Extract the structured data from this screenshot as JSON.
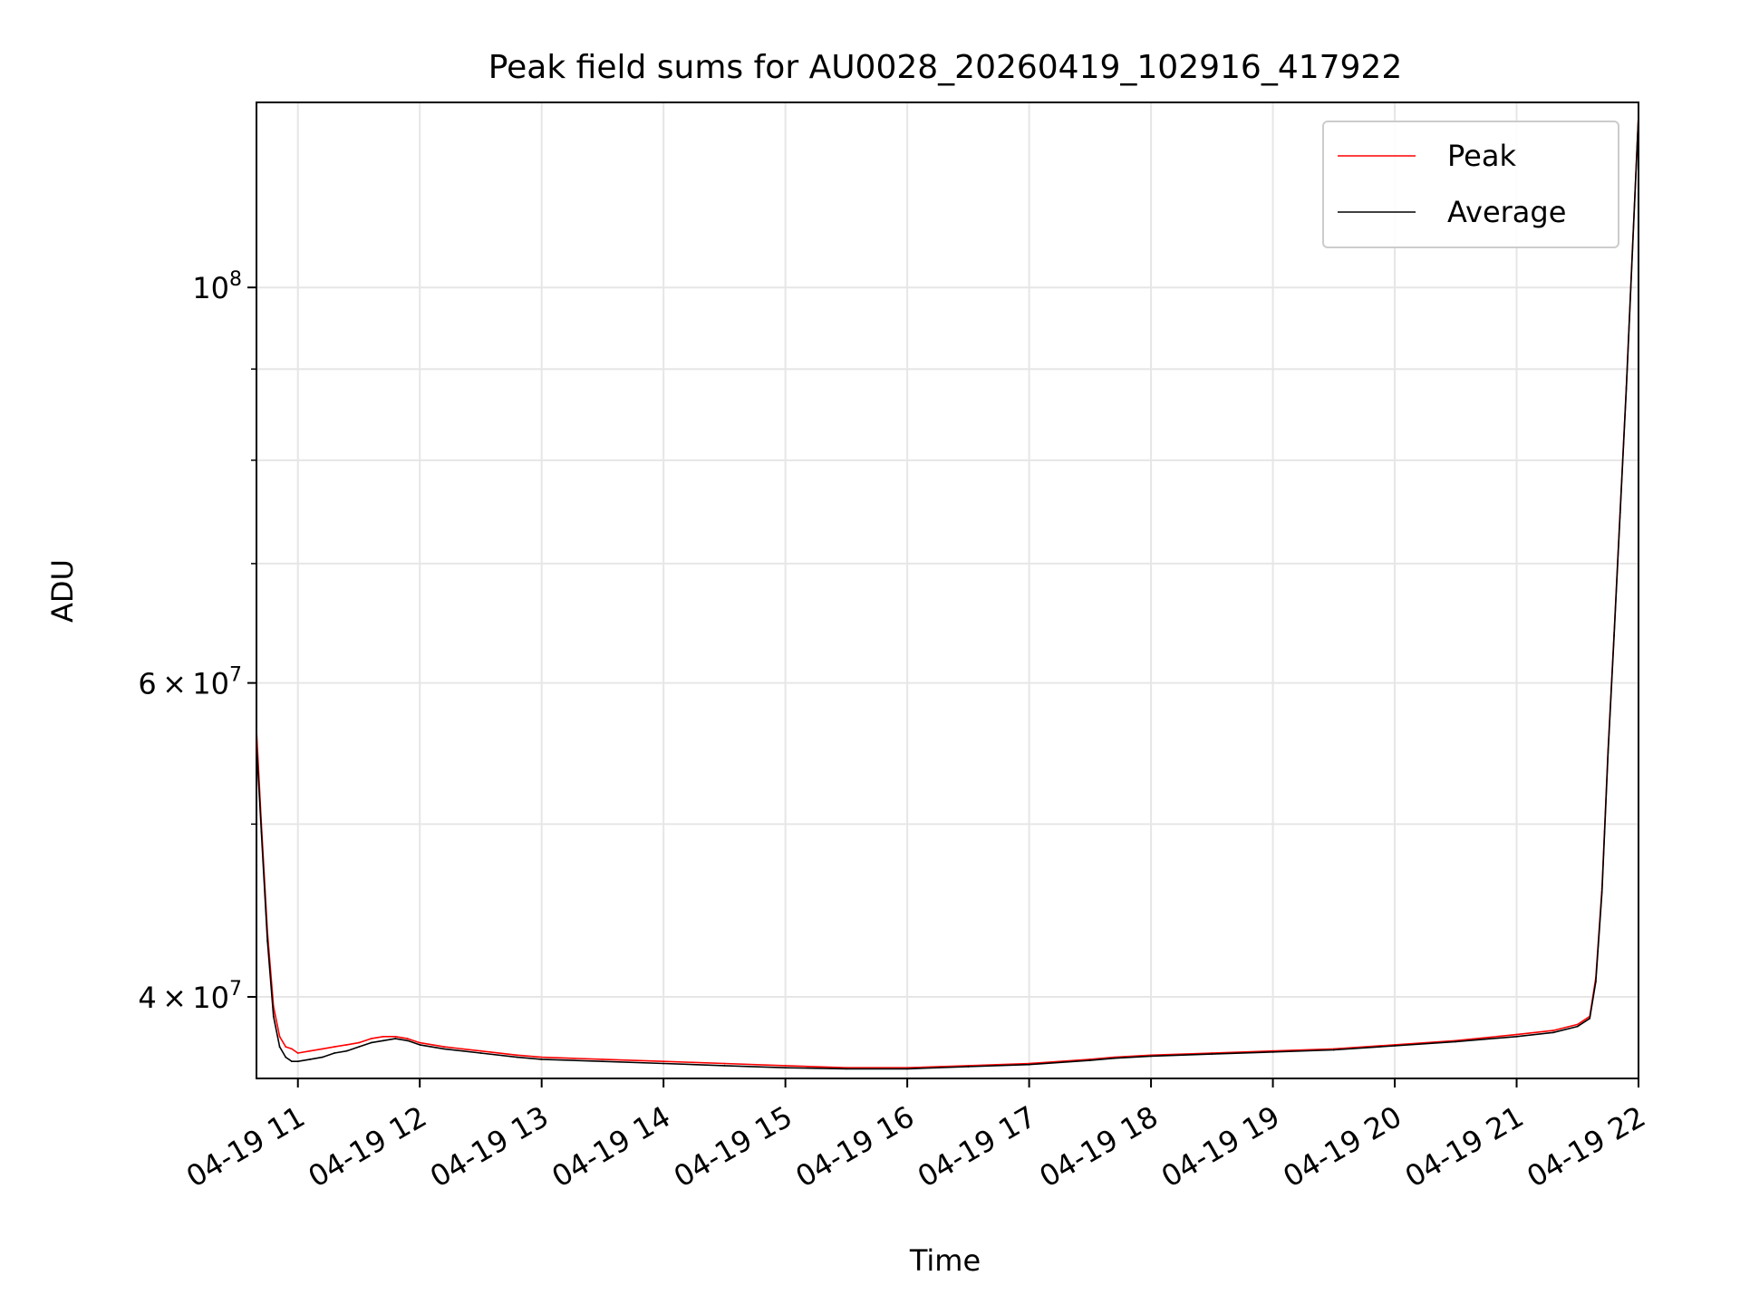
{
  "chart_data": {
    "type": "line",
    "title": "Peak field sums for AU0028_20260419_102916_417922",
    "xlabel": "Time",
    "ylabel": "ADU",
    "yscale": "log",
    "grid": true,
    "legend_position": "top-right",
    "xlim": [
      10.66,
      22.0
    ],
    "ylim": [
      36000000,
      127000000
    ],
    "x_ticks": [
      {
        "value": 11,
        "label": "04-19 11"
      },
      {
        "value": 12,
        "label": "04-19 12"
      },
      {
        "value": 13,
        "label": "04-19 13"
      },
      {
        "value": 14,
        "label": "04-19 14"
      },
      {
        "value": 15,
        "label": "04-19 15"
      },
      {
        "value": 16,
        "label": "04-19 16"
      },
      {
        "value": 17,
        "label": "04-19 17"
      },
      {
        "value": 18,
        "label": "04-19 18"
      },
      {
        "value": 19,
        "label": "04-19 19"
      },
      {
        "value": 20,
        "label": "04-19 20"
      },
      {
        "value": 21,
        "label": "04-19 21"
      },
      {
        "value": 22,
        "label": "04-19 22"
      }
    ],
    "y_major_ticks": [
      {
        "value": 40000000,
        "mantissa": "4",
        "exponent": "7"
      },
      {
        "value": 60000000,
        "mantissa": "6",
        "exponent": "7"
      },
      {
        "value": 100000000,
        "mantissa": "",
        "exponent": "8"
      }
    ],
    "y_minor_ticks": [
      50000000,
      70000000,
      80000000,
      90000000
    ],
    "series": [
      {
        "name": "Peak",
        "color": "#ff0000",
        "x": [
          10.66,
          10.7,
          10.75,
          10.8,
          10.85,
          10.9,
          10.95,
          11.0,
          11.1,
          11.2,
          11.3,
          11.4,
          11.5,
          11.6,
          11.7,
          11.8,
          11.9,
          12.0,
          12.2,
          12.5,
          12.8,
          13.0,
          13.5,
          14.0,
          14.5,
          15.0,
          15.5,
          16.0,
          16.5,
          17.0,
          17.5,
          17.7,
          18.0,
          18.5,
          19.0,
          19.5,
          20.0,
          20.5,
          21.0,
          21.3,
          21.5,
          21.6,
          21.65,
          21.7,
          21.75,
          21.8,
          21.85,
          21.9,
          21.95,
          22.0
        ],
        "values": [
          56500000,
          50000000,
          43500000,
          39500000,
          38000000,
          37500000,
          37400000,
          37200000,
          37300000,
          37400000,
          37500000,
          37600000,
          37700000,
          37900000,
          38000000,
          38000000,
          37900000,
          37700000,
          37500000,
          37300000,
          37100000,
          37000000,
          36900000,
          36800000,
          36700000,
          36600000,
          36500000,
          36500000,
          36600000,
          36700000,
          36900000,
          37000000,
          37100000,
          37200000,
          37300000,
          37400000,
          37600000,
          37800000,
          38100000,
          38300000,
          38600000,
          39000000,
          41000000,
          46000000,
          55000000,
          64000000,
          75000000,
          88000000,
          105000000,
          125000000
        ]
      },
      {
        "name": "Average",
        "color": "#000000",
        "x": [
          10.66,
          10.7,
          10.75,
          10.8,
          10.85,
          10.9,
          10.95,
          11.0,
          11.1,
          11.2,
          11.3,
          11.4,
          11.5,
          11.6,
          11.7,
          11.8,
          11.9,
          12.0,
          12.2,
          12.5,
          12.8,
          13.0,
          13.5,
          14.0,
          14.5,
          15.0,
          15.5,
          16.0,
          16.5,
          17.0,
          17.5,
          17.7,
          18.0,
          18.5,
          19.0,
          19.5,
          20.0,
          20.5,
          21.0,
          21.3,
          21.5,
          21.6,
          21.65,
          21.7,
          21.75,
          21.8,
          21.85,
          21.9,
          21.95,
          22.0
        ],
        "values": [
          55500000,
          49500000,
          43000000,
          39000000,
          37500000,
          37000000,
          36800000,
          36800000,
          36900000,
          37000000,
          37200000,
          37300000,
          37500000,
          37700000,
          37800000,
          37900000,
          37800000,
          37600000,
          37400000,
          37200000,
          37000000,
          36900000,
          36800000,
          36700000,
          36600000,
          36500000,
          36450000,
          36450000,
          36550000,
          36650000,
          36850000,
          36950000,
          37050000,
          37150000,
          37250000,
          37350000,
          37550000,
          37750000,
          38000000,
          38200000,
          38500000,
          38900000,
          40800000,
          45800000,
          54800000,
          63800000,
          74800000,
          87800000,
          104800000,
          124800000
        ]
      }
    ]
  }
}
